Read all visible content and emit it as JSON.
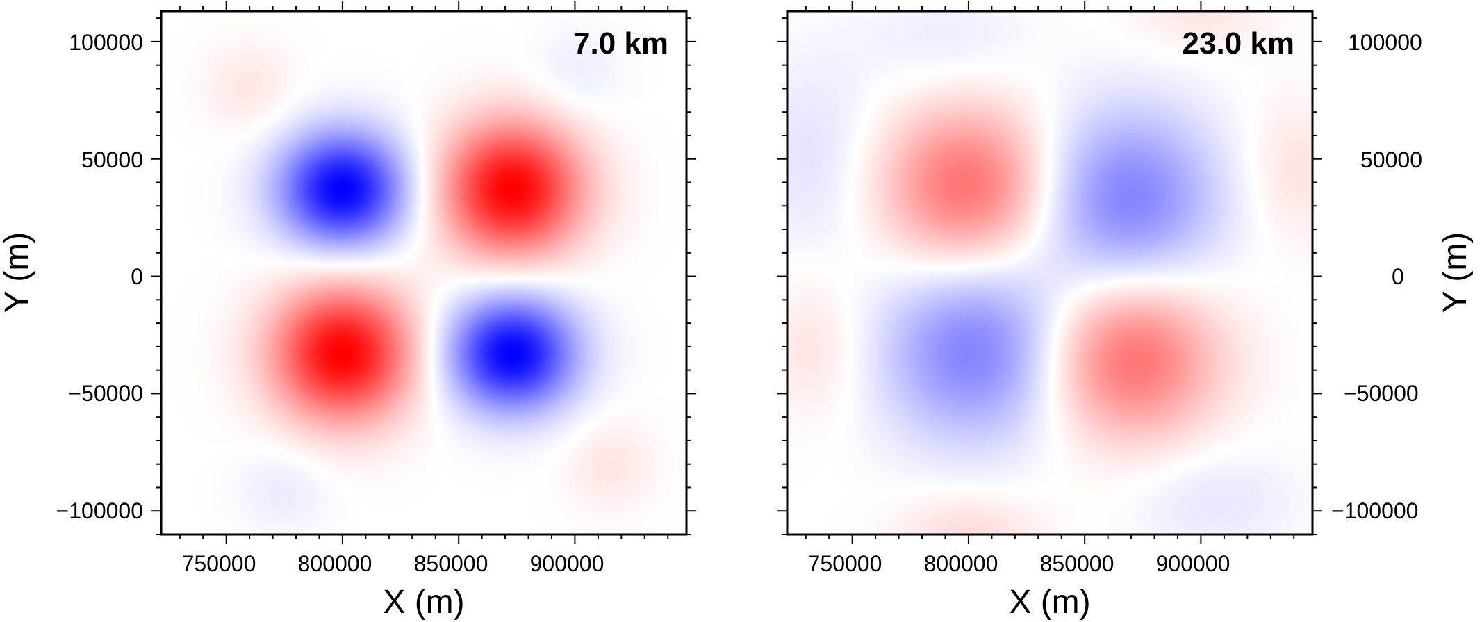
{
  "colors": {
    "negative": "#0000ff",
    "positive": "#ff0000",
    "zero": "#ffffff"
  },
  "chart_data": [
    {
      "type": "heatmap",
      "annotation": "7.0 km",
      "xlabel": "X (m)",
      "ylabel": "Y (m)",
      "y_axis_side": "left",
      "xlim": [
        722000,
        948000
      ],
      "ylim": [
        -110000,
        113000
      ],
      "xticks": [
        750000,
        800000,
        850000,
        900000
      ],
      "xtick_labels": [
        "750000",
        "800000",
        "850000",
        "900000"
      ],
      "yticks": [
        100000,
        50000,
        0,
        -50000,
        -100000
      ],
      "ytick_labels": [
        "100000",
        "50000",
        "0",
        "−50000",
        "−100000"
      ],
      "value_range": [
        -1,
        1
      ],
      "anomalies": [
        {
          "x": 800000,
          "y": 37000,
          "amplitude": -1.0,
          "sx": 19000,
          "sy": 17000
        },
        {
          "x": 873000,
          "y": 37000,
          "amplitude": 1.0,
          "sx": 21000,
          "sy": 20000
        },
        {
          "x": 800000,
          "y": -33000,
          "amplitude": 1.0,
          "sx": 21000,
          "sy": 20000
        },
        {
          "x": 873000,
          "y": -33000,
          "amplitude": -1.0,
          "sx": 19000,
          "sy": 17000
        },
        {
          "x": 760000,
          "y": 80000,
          "amplitude": 0.1,
          "sx": 14000,
          "sy": 14000
        },
        {
          "x": 915000,
          "y": -80000,
          "amplitude": 0.1,
          "sx": 14000,
          "sy": 14000
        },
        {
          "x": 900000,
          "y": 85000,
          "amplitude": -0.08,
          "sx": 14000,
          "sy": 14000
        },
        {
          "x": 775000,
          "y": -90000,
          "amplitude": -0.08,
          "sx": 14000,
          "sy": 14000
        }
      ]
    },
    {
      "type": "heatmap",
      "annotation": "23.0 km",
      "xlabel": "X (m)",
      "ylabel": "Y (m)",
      "y_axis_side": "right",
      "xlim": [
        722000,
        948000
      ],
      "ylim": [
        -110000,
        113000
      ],
      "xticks": [
        750000,
        800000,
        850000,
        900000
      ],
      "xtick_labels": [
        "750000",
        "800000",
        "850000",
        "900000"
      ],
      "yticks": [
        100000,
        50000,
        0,
        -50000,
        -100000
      ],
      "ytick_labels": [
        "100000",
        "50000",
        "0",
        "−50000",
        "−100000"
      ],
      "value_range": [
        -1,
        1
      ],
      "anomalies": [
        {
          "x": 800000,
          "y": 38000,
          "amplitude": 0.58,
          "sx": 26000,
          "sy": 24000
        },
        {
          "x": 868000,
          "y": 33000,
          "amplitude": -0.5,
          "sx": 28000,
          "sy": 27000
        },
        {
          "x": 803000,
          "y": -32000,
          "amplitude": -0.5,
          "sx": 28000,
          "sy": 27000
        },
        {
          "x": 870000,
          "y": -35000,
          "amplitude": 0.58,
          "sx": 26000,
          "sy": 24000
        },
        {
          "x": 735000,
          "y": 50000,
          "amplitude": -0.12,
          "sx": 20000,
          "sy": 30000
        },
        {
          "x": 940000,
          "y": 45000,
          "amplitude": 0.12,
          "sx": 16000,
          "sy": 22000
        },
        {
          "x": 735000,
          "y": -30000,
          "amplitude": 0.12,
          "sx": 16000,
          "sy": 22000
        },
        {
          "x": 800000,
          "y": -108000,
          "amplitude": 0.14,
          "sx": 22000,
          "sy": 12000
        },
        {
          "x": 900000,
          "y": 112000,
          "amplitude": 0.1,
          "sx": 22000,
          "sy": 12000
        },
        {
          "x": 905000,
          "y": -95000,
          "amplitude": -0.1,
          "sx": 25000,
          "sy": 16000
        },
        {
          "x": 790000,
          "y": 100000,
          "amplitude": -0.08,
          "sx": 25000,
          "sy": 16000
        }
      ]
    }
  ]
}
